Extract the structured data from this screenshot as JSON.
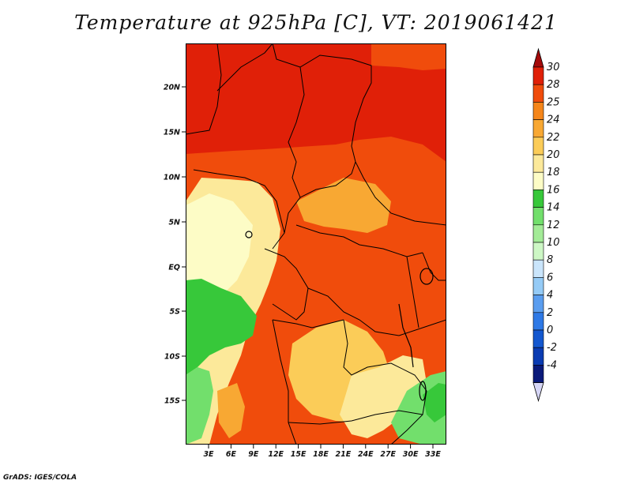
{
  "title": "Temperature at 925hPa [C], VT: 2019061421",
  "credit": "GrADS: IGES/COLA",
  "axes": {
    "lat_labels": [
      "20N",
      "15N",
      "10N",
      "5N",
      "EQ",
      "5S",
      "10S",
      "15S"
    ],
    "lon_labels": [
      "3E",
      "6E",
      "9E",
      "12E",
      "15E",
      "18E",
      "21E",
      "24E",
      "27E",
      "30E",
      "33E"
    ]
  },
  "colorbar": {
    "labels": [
      "30",
      "28",
      "25",
      "24",
      "22",
      "20",
      "18",
      "16",
      "14",
      "12",
      "10",
      "8",
      "6",
      "4",
      "2",
      "0",
      "-2",
      "-4"
    ],
    "colors": [
      "#a50a0a",
      "#e02008",
      "#f04c0c",
      "#f5861a",
      "#f8a833",
      "#fbcc58",
      "#fce99a",
      "#fdfcc6",
      "#37c83a",
      "#72df6c",
      "#a3eb97",
      "#cdf7c5",
      "#cae5fb",
      "#95cbf6",
      "#5a9def",
      "#2e79e6",
      "#1357cf",
      "#0a3bb2",
      "#0a1a7a",
      "#d6d6f6"
    ]
  }
}
